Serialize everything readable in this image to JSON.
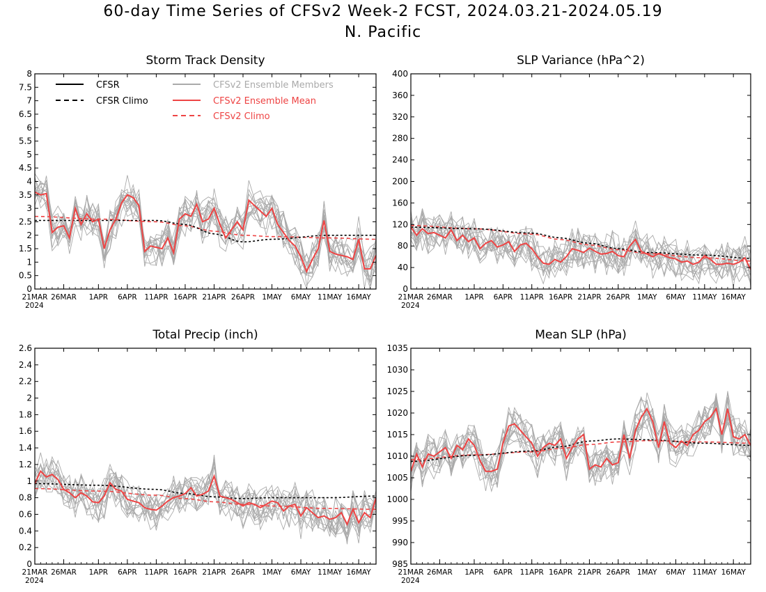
{
  "figure": {
    "title": "60-day Time Series of CFSv2 Week-2 FCST, 2024.03.21-2024.05.19",
    "region": "N. Pacific"
  },
  "colors": {
    "cfsr": "#000000",
    "ensemble_member": "#aaaaaa",
    "ensemble_mean": "#ee4444",
    "cfsv2_climo": "#ee4444"
  },
  "legend": [
    {
      "label": "CFSR",
      "color": "#000000",
      "dash": false
    },
    {
      "label": "CFSR Climo",
      "color": "#000000",
      "dash": true
    },
    {
      "label": "CFSv2 Ensemble Members",
      "color": "#aaaaaa",
      "dash": false
    },
    {
      "label": "CFSv2 Ensemble Mean",
      "color": "#ee4444",
      "dash": false
    },
    {
      "label": "CFSv2 Climo",
      "color": "#ee4444",
      "dash": true
    }
  ],
  "x_axis": {
    "day_count": 60,
    "start_date": "2024-03-21",
    "tick_labels": [
      "21MAR",
      "26MAR",
      "1APR",
      "6APR",
      "11APR",
      "16APR",
      "21APR",
      "26APR",
      "1MAY",
      "6MAY",
      "11MAY",
      "16MAY"
    ],
    "tick_dates": [
      "2024-03-21",
      "2024-03-26",
      "2024-04-01",
      "2024-04-06",
      "2024-04-11",
      "2024-04-16",
      "2024-04-21",
      "2024-04-26",
      "2024-05-01",
      "2024-05-06",
      "2024-05-11",
      "2024-05-16"
    ],
    "year_label": "2024"
  },
  "chart_data": [
    {
      "type": "line",
      "title": "Storm Track Density",
      "ylim": [
        0,
        8
      ],
      "yticks": [
        "0",
        "0.5",
        "1",
        "1.5",
        "2",
        "2.5",
        "3",
        "3.5",
        "4",
        "4.5",
        "5",
        "5.5",
        "6",
        "6.5",
        "7",
        "7.5",
        "8"
      ],
      "show_legend": true,
      "climo_key_dates": [
        "2024-03-21",
        "2024-04-01",
        "2024-04-11",
        "2024-04-16",
        "2024-04-21",
        "2024-04-26",
        "2024-05-01",
        "2024-05-11",
        "2024-05-19"
      ],
      "cfsr_climo": [
        2.55,
        2.55,
        2.55,
        2.4,
        2.05,
        1.75,
        1.85,
        2.0,
        2.0
      ],
      "cfsv2_climo": [
        2.7,
        2.6,
        2.5,
        2.35,
        2.15,
        2.0,
        1.95,
        1.9,
        1.85
      ],
      "ensemble_mean": [
        3.6,
        3.5,
        3.55,
        2.1,
        2.3,
        2.35,
        1.9,
        3.0,
        2.4,
        2.8,
        2.5,
        2.6,
        1.5,
        2.2,
        2.6,
        3.2,
        3.5,
        3.4,
        3.1,
        1.4,
        1.6,
        1.55,
        1.5,
        1.9,
        1.35,
        2.6,
        2.8,
        2.7,
        3.15,
        2.5,
        2.6,
        3.0,
        2.4,
        1.9,
        2.2,
        2.5,
        2.2,
        3.3,
        3.1,
        2.9,
        2.7,
        3.0,
        2.4,
        2.1,
        1.8,
        1.6,
        1.2,
        0.65,
        1.1,
        1.5,
        2.55,
        1.4,
        1.3,
        1.25,
        1.2,
        1.1,
        1.85,
        0.75,
        0.75,
        1.25
      ]
    },
    {
      "type": "line",
      "title": "SLP Variance (hPa^2)",
      "ylim": [
        0,
        400
      ],
      "yticks": [
        "0",
        "40",
        "80",
        "120",
        "160",
        "200",
        "240",
        "280",
        "320",
        "360",
        "400"
      ],
      "show_legend": false,
      "climo_key_dates": [
        "2024-03-21",
        "2024-04-01",
        "2024-04-11",
        "2024-04-16",
        "2024-04-21",
        "2024-04-26",
        "2024-05-01",
        "2024-05-11",
        "2024-05-19"
      ],
      "cfsr_climo": [
        115,
        112,
        104,
        95,
        85,
        75,
        68,
        63,
        57
      ],
      "cfsv2_climo": [
        118,
        112,
        102,
        92,
        82,
        73,
        66,
        58,
        52
      ],
      "ensemble_mean": [
        115,
        100,
        112,
        103,
        105,
        100,
        95,
        110,
        90,
        100,
        88,
        95,
        75,
        85,
        90,
        78,
        82,
        88,
        70,
        82,
        85,
        75,
        60,
        48,
        46,
        55,
        50,
        60,
        75,
        72,
        68,
        76,
        70,
        65,
        66,
        70,
        62,
        60,
        80,
        92,
        70,
        65,
        60,
        66,
        62,
        58,
        56,
        50,
        52,
        46,
        50,
        62,
        55,
        46,
        46,
        48,
        46,
        50,
        58,
        36
      ]
    },
    {
      "type": "line",
      "title": "Total Precip (inch)",
      "ylim": [
        0,
        2.6
      ],
      "yticks": [
        "0",
        "0.2",
        "0.4",
        "0.6",
        "0.8",
        "1",
        "1.2",
        "1.4",
        "1.6",
        "1.8",
        "2",
        "2.2",
        "2.4",
        "2.6"
      ],
      "show_legend": false,
      "climo_key_dates": [
        "2024-03-21",
        "2024-04-01",
        "2024-04-11",
        "2024-04-16",
        "2024-04-21",
        "2024-04-26",
        "2024-05-01",
        "2024-05-11",
        "2024-05-19"
      ],
      "cfsr_climo": [
        0.97,
        0.95,
        0.9,
        0.85,
        0.81,
        0.79,
        0.8,
        0.8,
        0.82
      ],
      "cfsv2_climo": [
        0.91,
        0.88,
        0.83,
        0.79,
        0.75,
        0.72,
        0.7,
        0.67,
        0.66
      ],
      "ensemble_mean": [
        0.97,
        1.12,
        1.05,
        1.08,
        1.02,
        0.9,
        0.86,
        0.8,
        0.86,
        0.82,
        0.75,
        0.74,
        0.82,
        0.98,
        0.9,
        0.88,
        0.78,
        0.76,
        0.74,
        0.68,
        0.66,
        0.65,
        0.7,
        0.76,
        0.8,
        0.82,
        0.85,
        0.92,
        0.82,
        0.84,
        0.88,
        1.06,
        0.82,
        0.8,
        0.78,
        0.74,
        0.7,
        0.74,
        0.72,
        0.68,
        0.72,
        0.76,
        0.74,
        0.64,
        0.7,
        0.72,
        0.58,
        0.68,
        0.62,
        0.56,
        0.58,
        0.54,
        0.56,
        0.62,
        0.48,
        0.66,
        0.5,
        0.62,
        0.56,
        0.8
      ]
    },
    {
      "type": "line",
      "title": "Mean SLP (hPa)",
      "ylim": [
        985,
        1035
      ],
      "yticks": [
        "985",
        "990",
        "995",
        "1000",
        "1005",
        "1010",
        "1015",
        "1020",
        "1025",
        "1030",
        "1035"
      ],
      "show_legend": false,
      "climo_key_dates": [
        "2024-03-21",
        "2024-04-01",
        "2024-04-11",
        "2024-04-16",
        "2024-04-21",
        "2024-04-26",
        "2024-05-01",
        "2024-05-11",
        "2024-05-19"
      ],
      "cfsr_climo": [
        1008.8,
        1010.2,
        1011.2,
        1012.2,
        1013.5,
        1014.0,
        1013.8,
        1013.0,
        1012.5
      ],
      "cfsv2_climo": [
        1009.2,
        1010.3,
        1011.0,
        1011.8,
        1012.7,
        1013.3,
        1013.6,
        1013.3,
        1013.0
      ],
      "ensemble_mean": [
        1006.5,
        1010.5,
        1007.5,
        1010.5,
        1010.0,
        1011.0,
        1012.0,
        1009.5,
        1012.5,
        1011.5,
        1014.0,
        1012.5,
        1009.0,
        1006.5,
        1006.5,
        1007.0,
        1013.0,
        1017.0,
        1017.5,
        1016.0,
        1014.5,
        1013.0,
        1010.0,
        1012.0,
        1013.0,
        1012.5,
        1014.0,
        1009.5,
        1012.0,
        1014.0,
        1015.0,
        1007.0,
        1008.0,
        1007.5,
        1009.5,
        1008.0,
        1008.5,
        1015.0,
        1009.5,
        1016.0,
        1019.0,
        1021.0,
        1018.0,
        1012.0,
        1018.0,
        1013.0,
        1012.0,
        1013.5,
        1012.5,
        1015.0,
        1016.0,
        1018.0,
        1019.0,
        1021.0,
        1015.0,
        1021.0,
        1014.5,
        1014.0,
        1015.0,
        1012.5
      ]
    }
  ]
}
